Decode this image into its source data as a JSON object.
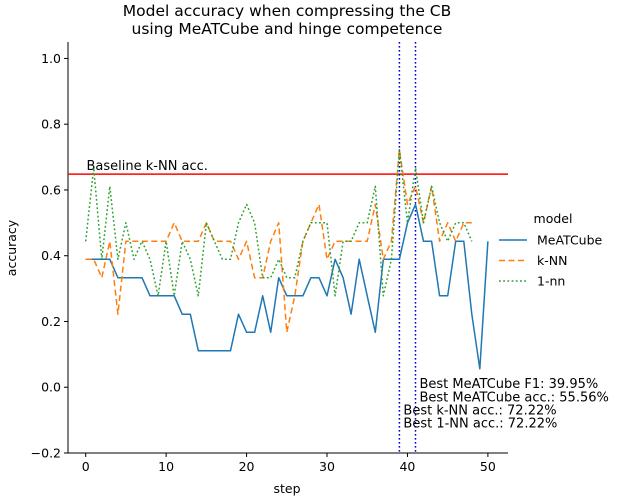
{
  "chart_data": {
    "type": "line",
    "title_line1": "Model accuracy when compressing the CB",
    "title_line2": "using MeATCube and hinge competence",
    "xlabel": "step",
    "ylabel": "accuracy",
    "xlim": [
      -2.2,
      52.5
    ],
    "ylim": [
      -0.2,
      1.05
    ],
    "xticks": [
      0,
      10,
      20,
      30,
      40,
      50
    ],
    "yticks": [
      -0.2,
      0.0,
      0.2,
      0.4,
      0.6,
      0.8,
      1.0
    ],
    "grid": false,
    "legend": {
      "title": "model",
      "placement": "right-outside",
      "entries": [
        "MeATCube",
        "k-NN",
        "1-nn"
      ]
    },
    "series": [
      {
        "name": "MeATCube",
        "color": "#1f77b4",
        "dash": "solid",
        "values": [
          0.389,
          0.389,
          0.389,
          0.389,
          0.333,
          0.333,
          0.333,
          0.333,
          0.278,
          0.278,
          0.278,
          0.278,
          0.222,
          0.222,
          0.111,
          0.111,
          0.111,
          0.111,
          0.111,
          0.222,
          0.167,
          0.167,
          0.278,
          0.167,
          0.333,
          0.278,
          0.278,
          0.278,
          0.333,
          0.333,
          0.278,
          0.389,
          0.333,
          0.222,
          0.389,
          0.278,
          0.167,
          0.389,
          0.389,
          0.389,
          0.5,
          0.556,
          0.444,
          0.444,
          0.278,
          0.278,
          0.444,
          0.444,
          0.222,
          0.056,
          0.444
        ]
      },
      {
        "name": "k-NN",
        "color": "#ff7f0e",
        "dash": "dashed",
        "values": [
          0.389,
          0.389,
          0.333,
          0.444,
          0.222,
          0.444,
          0.444,
          0.444,
          0.444,
          0.444,
          0.444,
          0.5,
          0.444,
          0.444,
          0.444,
          0.5,
          0.444,
          0.444,
          0.444,
          0.389,
          0.444,
          0.333,
          0.333,
          0.444,
          0.5,
          0.167,
          0.278,
          0.444,
          0.5,
          0.556,
          0.389,
          0.444,
          0.444,
          0.444,
          0.444,
          0.444,
          0.556,
          0.389,
          0.444,
          0.722,
          0.556,
          0.611,
          0.5,
          0.611,
          0.444,
          0.5,
          0.444,
          0.5,
          0.5,
          null,
          null
        ]
      },
      {
        "name": "1-nn",
        "color": "#2ca02c",
        "dash": "dotted",
        "values": [
          0.444,
          0.667,
          0.389,
          0.611,
          0.389,
          0.5,
          0.389,
          0.444,
          0.389,
          0.278,
          0.444,
          0.278,
          0.444,
          0.389,
          0.278,
          0.5,
          0.444,
          0.389,
          0.389,
          0.5,
          0.556,
          0.5,
          0.333,
          0.333,
          0.389,
          0.333,
          0.333,
          0.444,
          0.5,
          0.5,
          0.5,
          0.278,
          0.444,
          0.444,
          0.5,
          0.5,
          0.611,
          0.278,
          0.389,
          0.722,
          0.5,
          0.667,
          0.5,
          0.611,
          0.5,
          0.444,
          0.5,
          0.5,
          0.444,
          null,
          null
        ]
      }
    ],
    "baseline": {
      "value": 0.648,
      "label": "Baseline k-NN acc.",
      "color": "#ff0000"
    },
    "vlines": [
      {
        "x": 39,
        "color": "#0000cc"
      },
      {
        "x": 41,
        "color": "#0000cc"
      }
    ],
    "annotations": [
      {
        "text": "Best MeATCube F1: 39.95%",
        "x": 41,
        "y": 0.0
      },
      {
        "text": "Best MeATCube acc.: 55.56%",
        "x": 41,
        "y": -0.04
      },
      {
        "text": "Best k-NN acc.: 72.22%",
        "x": 39,
        "y": -0.08
      },
      {
        "text": "Best 1-NN acc.: 72.22%",
        "x": 39,
        "y": -0.12
      }
    ]
  }
}
